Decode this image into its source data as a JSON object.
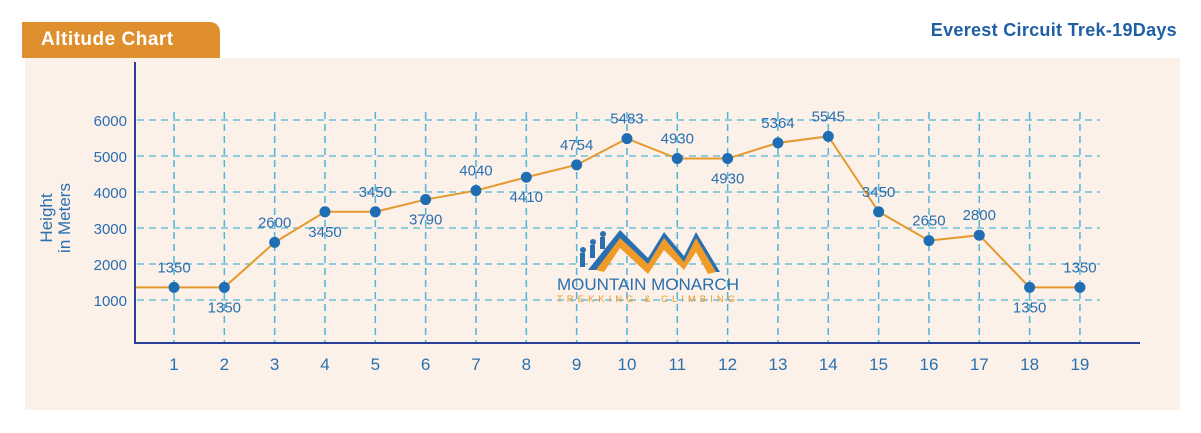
{
  "header": {
    "tag_label": "Altitude Chart",
    "trek_title": "Everest Circuit Trek-19Days"
  },
  "logo": {
    "name": "MOUNTAIN MONARCH",
    "tagline": "TREKKING & CLIMBING"
  },
  "colors": {
    "line": "#e49a2e",
    "point": "#1f6db3",
    "grid": "#4fb6d8",
    "axis": "#2a3f96",
    "text": "#2a6fb0",
    "tag": "#e08f2f",
    "panel": "#fbf1e9"
  },
  "chart_data": {
    "type": "line",
    "title": "Altitude Chart",
    "ylabel": "Height in Meters",
    "ylabel_lines": [
      "Height",
      "in Meters"
    ],
    "xlabel": "",
    "x": [
      1,
      2,
      3,
      4,
      5,
      6,
      7,
      8,
      9,
      10,
      11,
      12,
      13,
      14,
      15,
      16,
      17,
      18,
      19
    ],
    "values": [
      1350,
      1350,
      2600,
      3450,
      3450,
      3790,
      4040,
      4410,
      4754,
      5483,
      4930,
      4930,
      5364,
      5545,
      3450,
      2650,
      2800,
      1350,
      1350
    ],
    "label_position": [
      "above",
      "below",
      "above",
      "below",
      "above",
      "below",
      "above",
      "below",
      "above",
      "above",
      "above",
      "below",
      "above",
      "above",
      "above",
      "above",
      "above",
      "below",
      "above"
    ],
    "yticks": [
      1000,
      2000,
      3000,
      4000,
      5000,
      6000
    ],
    "ylim": [
      0,
      7000
    ],
    "grid": true
  }
}
